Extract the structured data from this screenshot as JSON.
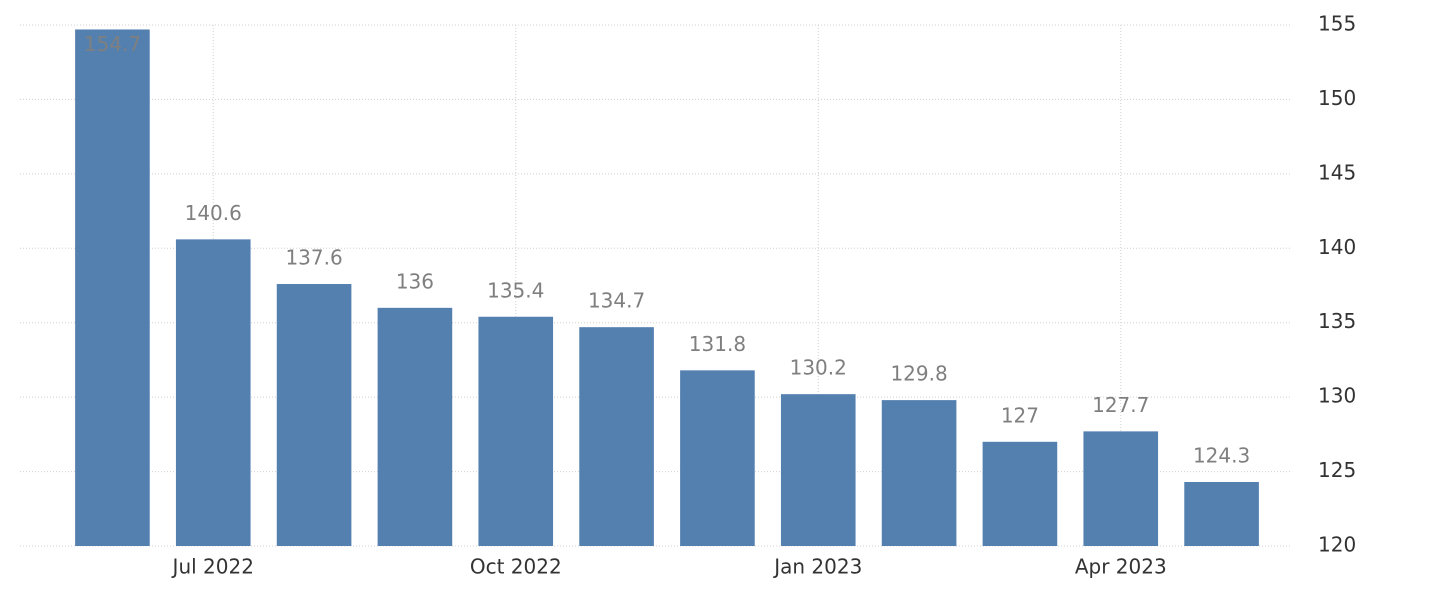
{
  "chart_data": {
    "type": "bar",
    "categories": [
      null,
      "Jul 2022",
      null,
      null,
      "Oct 2022",
      null,
      null,
      "Jan 2023",
      null,
      null,
      "Apr 2023",
      null
    ],
    "values": [
      154.7,
      140.6,
      137.6,
      136,
      135.4,
      134.7,
      131.8,
      130.2,
      129.8,
      127,
      127.7,
      124.3
    ],
    "color": "#5480b0",
    "ylim": [
      120,
      155
    ],
    "yticks": [
      120,
      125,
      130,
      135,
      140,
      145,
      150,
      155
    ],
    "grid": true
  }
}
